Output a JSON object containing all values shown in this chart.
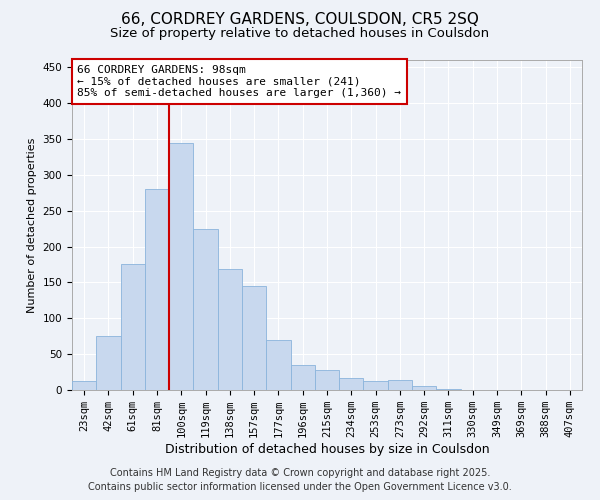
{
  "title": "66, CORDREY GARDENS, COULSDON, CR5 2SQ",
  "subtitle": "Size of property relative to detached houses in Coulsdon",
  "xlabel": "Distribution of detached houses by size in Coulsdon",
  "ylabel": "Number of detached properties",
  "bar_color": "#c8d8ee",
  "bar_edge_color": "#8ab4dc",
  "background_color": "#eef2f8",
  "grid_color": "#ffffff",
  "categories": [
    "23sqm",
    "42sqm",
    "61sqm",
    "81sqm",
    "100sqm",
    "119sqm",
    "138sqm",
    "157sqm",
    "177sqm",
    "196sqm",
    "215sqm",
    "234sqm",
    "253sqm",
    "273sqm",
    "292sqm",
    "311sqm",
    "330sqm",
    "349sqm",
    "369sqm",
    "388sqm",
    "407sqm"
  ],
  "values": [
    12,
    75,
    175,
    280,
    345,
    225,
    168,
    145,
    70,
    35,
    28,
    17,
    13,
    14,
    6,
    1,
    0,
    0,
    0,
    0,
    0
  ],
  "vline_x_idx": 4,
  "vline_color": "#cc0000",
  "annotation_text": "66 CORDREY GARDENS: 98sqm\n← 15% of detached houses are smaller (241)\n85% of semi-detached houses are larger (1,360) →",
  "annotation_box_color": "#ffffff",
  "annotation_box_edge_color": "#cc0000",
  "ylim": [
    0,
    460
  ],
  "yticks": [
    0,
    50,
    100,
    150,
    200,
    250,
    300,
    350,
    400,
    450
  ],
  "footer1": "Contains HM Land Registry data © Crown copyright and database right 2025.",
  "footer2": "Contains public sector information licensed under the Open Government Licence v3.0.",
  "title_fontsize": 11,
  "subtitle_fontsize": 9.5,
  "tick_fontsize": 7.5,
  "ylabel_fontsize": 8,
  "xlabel_fontsize": 9,
  "annotation_fontsize": 8,
  "footer_fontsize": 7
}
